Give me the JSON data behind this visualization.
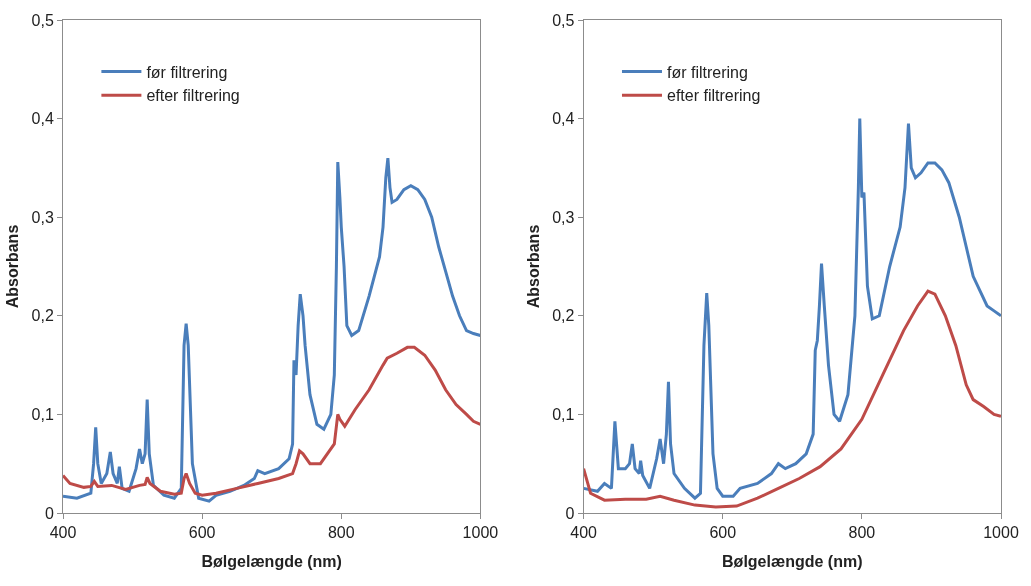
{
  "chart_data": [
    {
      "type": "line",
      "xlabel": "Bølgelængde (nm)",
      "ylabel": "Absorbans",
      "xlim": [
        400,
        1000
      ],
      "xticks": [
        400,
        600,
        800,
        1000
      ],
      "ylim": [
        0,
        0.5
      ],
      "yticks": [
        0,
        {
          "value": 0.1,
          "label": "0,1"
        },
        {
          "value": 0.2,
          "label": "0,2"
        },
        {
          "value": 0.3,
          "label": "0,3"
        },
        {
          "value": 0.4,
          "label": "0,4"
        },
        {
          "value": 0.5,
          "label": "0,5"
        }
      ],
      "legend": "top left",
      "marker": "none",
      "line_style": "solid",
      "series": [
        {
          "name": "før filtrering",
          "color": "#4a7ebb",
          "x": [
            400,
            420,
            440,
            444,
            447,
            450,
            455,
            463,
            468,
            472,
            478,
            481,
            485,
            495,
            505,
            510,
            514,
            518,
            521,
            524,
            530,
            545,
            560,
            570,
            574,
            577,
            580,
            586,
            595,
            610,
            620,
            640,
            660,
            675,
            680,
            690,
            710,
            725,
            730,
            732,
            735,
            738,
            741,
            745,
            748,
            755,
            765,
            775,
            785,
            790,
            793,
            795,
            798,
            800,
            804,
            808,
            815,
            825,
            840,
            855,
            860,
            864,
            867,
            870,
            873,
            880,
            890,
            900,
            910,
            920,
            930,
            940,
            950,
            960,
            970,
            980,
            990,
            1000
          ],
          "values": [
            0.017,
            0.015,
            0.02,
            0.05,
            0.087,
            0.05,
            0.03,
            0.04,
            0.062,
            0.04,
            0.03,
            0.047,
            0.025,
            0.022,
            0.045,
            0.065,
            0.05,
            0.06,
            0.115,
            0.06,
            0.028,
            0.018,
            0.015,
            0.025,
            0.17,
            0.192,
            0.17,
            0.05,
            0.015,
            0.012,
            0.018,
            0.022,
            0.028,
            0.035,
            0.043,
            0.04,
            0.045,
            0.055,
            0.07,
            0.155,
            0.14,
            0.19,
            0.222,
            0.2,
            0.17,
            0.12,
            0.09,
            0.085,
            0.1,
            0.14,
            0.25,
            0.356,
            0.32,
            0.29,
            0.25,
            0.19,
            0.18,
            0.185,
            0.22,
            0.26,
            0.29,
            0.34,
            0.36,
            0.33,
            0.315,
            0.318,
            0.328,
            0.332,
            0.328,
            0.318,
            0.3,
            0.27,
            0.245,
            0.22,
            0.2,
            0.185,
            0.182,
            0.18
          ]
        },
        {
          "name": "efter filtrering",
          "color": "#be4b48",
          "x": [
            400,
            410,
            430,
            440,
            445,
            450,
            470,
            490,
            510,
            518,
            521,
            525,
            540,
            560,
            570,
            574,
            577,
            582,
            590,
            600,
            620,
            650,
            680,
            710,
            730,
            735,
            740,
            745,
            755,
            770,
            790,
            795,
            798,
            805,
            820,
            840,
            860,
            866,
            880,
            895,
            905,
            920,
            935,
            950,
            965,
            980,
            990,
            1000
          ],
          "values": [
            0.038,
            0.03,
            0.026,
            0.027,
            0.032,
            0.027,
            0.028,
            0.024,
            0.028,
            0.029,
            0.036,
            0.03,
            0.022,
            0.019,
            0.02,
            0.035,
            0.04,
            0.03,
            0.02,
            0.018,
            0.02,
            0.025,
            0.03,
            0.035,
            0.04,
            0.05,
            0.063,
            0.06,
            0.05,
            0.05,
            0.07,
            0.1,
            0.095,
            0.088,
            0.105,
            0.125,
            0.15,
            0.157,
            0.162,
            0.168,
            0.168,
            0.16,
            0.145,
            0.125,
            0.11,
            0.1,
            0.093,
            0.09
          ]
        }
      ]
    },
    {
      "type": "line",
      "xlabel": "Bølgelængde (nm)",
      "ylabel": "Absorbans",
      "xlim": [
        400,
        1000
      ],
      "xticks": [
        400,
        600,
        800,
        1000
      ],
      "ylim": [
        0,
        0.5
      ],
      "yticks": [
        0,
        {
          "value": 0.1,
          "label": "0,1"
        },
        {
          "value": 0.2,
          "label": "0,2"
        },
        {
          "value": 0.3,
          "label": "0,3"
        },
        {
          "value": 0.4,
          "label": "0,4"
        },
        {
          "value": 0.5,
          "label": "0,5"
        }
      ],
      "legend": "top left",
      "marker": "none",
      "line_style": "solid",
      "series": [
        {
          "name": "før filtrering",
          "color": "#4a7ebb",
          "x": [
            400,
            420,
            430,
            440,
            445,
            450,
            460,
            466,
            470,
            474,
            480,
            482,
            485,
            495,
            505,
            510,
            515,
            519,
            522,
            525,
            530,
            545,
            560,
            568,
            573,
            577,
            580,
            586,
            592,
            600,
            615,
            625,
            650,
            670,
            680,
            690,
            705,
            720,
            730,
            733,
            736,
            739,
            742,
            746,
            752,
            760,
            768,
            780,
            790,
            795,
            797,
            800,
            803,
            808,
            815,
            825,
            840,
            855,
            862,
            867,
            871,
            877,
            885,
            895,
            905,
            915,
            925,
            940,
            950,
            960,
            970,
            980,
            990,
            1000
          ],
          "values": [
            0.025,
            0.022,
            0.03,
            0.025,
            0.093,
            0.045,
            0.045,
            0.05,
            0.07,
            0.045,
            0.04,
            0.053,
            0.038,
            0.025,
            0.055,
            0.075,
            0.05,
            0.08,
            0.133,
            0.07,
            0.04,
            0.025,
            0.015,
            0.02,
            0.17,
            0.223,
            0.19,
            0.06,
            0.025,
            0.017,
            0.017,
            0.025,
            0.03,
            0.04,
            0.05,
            0.045,
            0.05,
            0.06,
            0.08,
            0.165,
            0.175,
            0.21,
            0.253,
            0.21,
            0.15,
            0.1,
            0.093,
            0.12,
            0.2,
            0.33,
            0.4,
            0.32,
            0.325,
            0.23,
            0.197,
            0.2,
            0.25,
            0.29,
            0.33,
            0.395,
            0.35,
            0.34,
            0.345,
            0.355,
            0.355,
            0.348,
            0.335,
            0.3,
            0.27,
            0.24,
            0.225,
            0.21,
            0.205,
            0.2
          ]
        },
        {
          "name": "efter filtrering",
          "color": "#be4b48",
          "x": [
            400,
            410,
            430,
            460,
            490,
            510,
            530,
            560,
            590,
            620,
            650,
            680,
            710,
            740,
            770,
            800,
            830,
            860,
            880,
            895,
            905,
            920,
            935,
            950,
            960,
            975,
            990,
            1000
          ],
          "values": [
            0.045,
            0.02,
            0.013,
            0.014,
            0.014,
            0.017,
            0.013,
            0.008,
            0.006,
            0.007,
            0.015,
            0.025,
            0.035,
            0.047,
            0.065,
            0.095,
            0.14,
            0.185,
            0.21,
            0.225,
            0.222,
            0.2,
            0.17,
            0.13,
            0.115,
            0.108,
            0.1,
            0.098
          ]
        }
      ]
    }
  ]
}
